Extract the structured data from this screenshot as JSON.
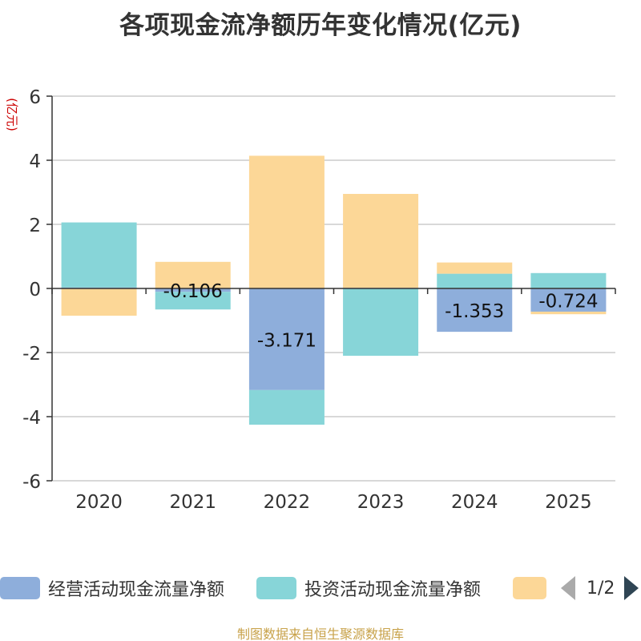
{
  "title": "各项现金流净额历年变化情况(亿元)",
  "source": "制图数据来自恒生聚源数据库",
  "legend_pager": "1/2",
  "chart_data": {
    "type": "bar",
    "stacked": true,
    "categories": [
      "2020",
      "2021",
      "2022",
      "2023",
      "2024",
      "2025"
    ],
    "ylabel": "(亿元)",
    "ylim": [
      -6,
      6
    ],
    "yticks": [
      6,
      4,
      2,
      0,
      -2,
      -4,
      -6
    ],
    "grid": true,
    "legend_position": "bottom",
    "series": [
      {
        "name": "经营活动现金流量净额",
        "color": "#8eaedb",
        "values": [
          0.03,
          -0.106,
          -3.171,
          0.02,
          -1.353,
          -0.724
        ],
        "labels": [
          "",
          "-0.106",
          "-3.171",
          "",
          "-1.353",
          "-0.724"
        ]
      },
      {
        "name": "投资活动现金流量净额",
        "color": "#87d5d8",
        "values": [
          2.03,
          -0.55,
          -1.08,
          -2.1,
          0.46,
          0.48
        ]
      },
      {
        "name": "",
        "color": "#fcd797",
        "values": [
          -0.85,
          0.83,
          4.14,
          2.93,
          0.35,
          -0.08
        ]
      }
    ]
  }
}
